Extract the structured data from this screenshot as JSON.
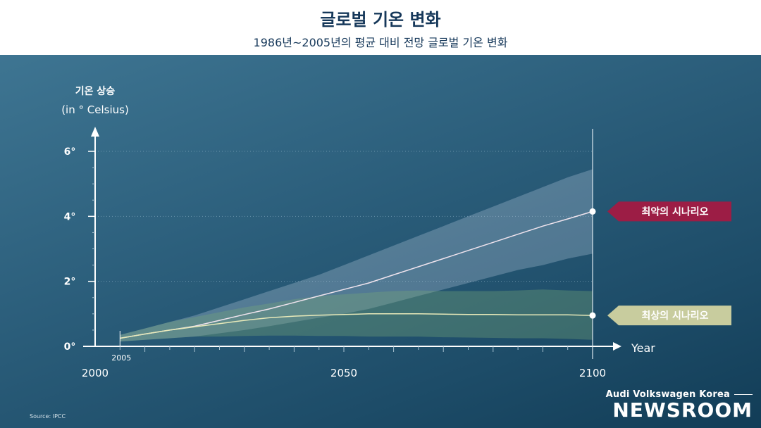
{
  "header": {
    "title": "글로벌 기온 변화",
    "subtitle": "1986년~2005년의 평균 대비 전망 글로벌 기온 변화"
  },
  "chart_data": {
    "type": "area",
    "title": "글로벌 기온 변화",
    "subtitle": "1986년~2005년의 평균 대비 전망 글로벌 기온 변화",
    "ylabel": "기온 상승",
    "ylabel_unit": "(in ° Celsius)",
    "xlabel": "Year",
    "xlim": [
      2000,
      2100
    ],
    "ylim": [
      0,
      6.5
    ],
    "x_ticks": [
      "2000",
      "2050",
      "2100"
    ],
    "x_start_label": "2005",
    "y_ticks": [
      "0°",
      "2°",
      "4°",
      "6°"
    ],
    "grid": "dotted horizontal at 2°, 4°, 6°",
    "series": [
      {
        "name": "최악의 시나리오",
        "color": "#9c1d45",
        "x": [
          2005,
          2010,
          2015,
          2020,
          2025,
          2030,
          2035,
          2040,
          2045,
          2050,
          2055,
          2060,
          2065,
          2070,
          2075,
          2080,
          2085,
          2090,
          2095,
          2100
        ],
        "mean": [
          0.25,
          0.38,
          0.5,
          0.62,
          0.8,
          0.98,
          1.15,
          1.35,
          1.55,
          1.75,
          1.95,
          2.2,
          2.45,
          2.7,
          2.95,
          3.2,
          3.45,
          3.7,
          3.92,
          4.15
        ],
        "low": [
          0.15,
          0.2,
          0.25,
          0.3,
          0.4,
          0.5,
          0.62,
          0.75,
          0.88,
          1.0,
          1.15,
          1.35,
          1.55,
          1.75,
          1.95,
          2.15,
          2.35,
          2.5,
          2.7,
          2.85
        ],
        "high": [
          0.35,
          0.55,
          0.75,
          0.95,
          1.2,
          1.45,
          1.7,
          1.95,
          2.2,
          2.5,
          2.8,
          3.1,
          3.4,
          3.7,
          4.0,
          4.3,
          4.6,
          4.9,
          5.2,
          5.45
        ]
      },
      {
        "name": "최상의 시나리오",
        "color": "#c8cc9e",
        "x": [
          2005,
          2010,
          2015,
          2020,
          2025,
          2030,
          2035,
          2040,
          2045,
          2050,
          2055,
          2060,
          2065,
          2070,
          2075,
          2080,
          2085,
          2090,
          2095,
          2100
        ],
        "mean": [
          0.25,
          0.38,
          0.5,
          0.6,
          0.7,
          0.8,
          0.88,
          0.93,
          0.96,
          0.98,
          1.0,
          1.0,
          1.0,
          0.99,
          0.98,
          0.98,
          0.97,
          0.97,
          0.97,
          0.95
        ],
        "low": [
          0.15,
          0.2,
          0.25,
          0.3,
          0.3,
          0.32,
          0.33,
          0.33,
          0.32,
          0.32,
          0.3,
          0.3,
          0.3,
          0.28,
          0.27,
          0.26,
          0.25,
          0.25,
          0.23,
          0.2
        ],
        "high": [
          0.35,
          0.55,
          0.75,
          0.9,
          1.05,
          1.2,
          1.32,
          1.45,
          1.55,
          1.6,
          1.65,
          1.7,
          1.72,
          1.7,
          1.7,
          1.7,
          1.72,
          1.75,
          1.72,
          1.7
        ]
      }
    ],
    "endpoint_labels": [
      "최악의 시나리오",
      "최상의 시나리오"
    ]
  },
  "footer": {
    "source": "Source: IPCC",
    "brand_top": "Audi Volkswagen Korea",
    "brand_main": "NEWSROOM"
  },
  "colors": {
    "worst": "#9c1d45",
    "best": "#c8cc9e",
    "title": "#16385a"
  }
}
